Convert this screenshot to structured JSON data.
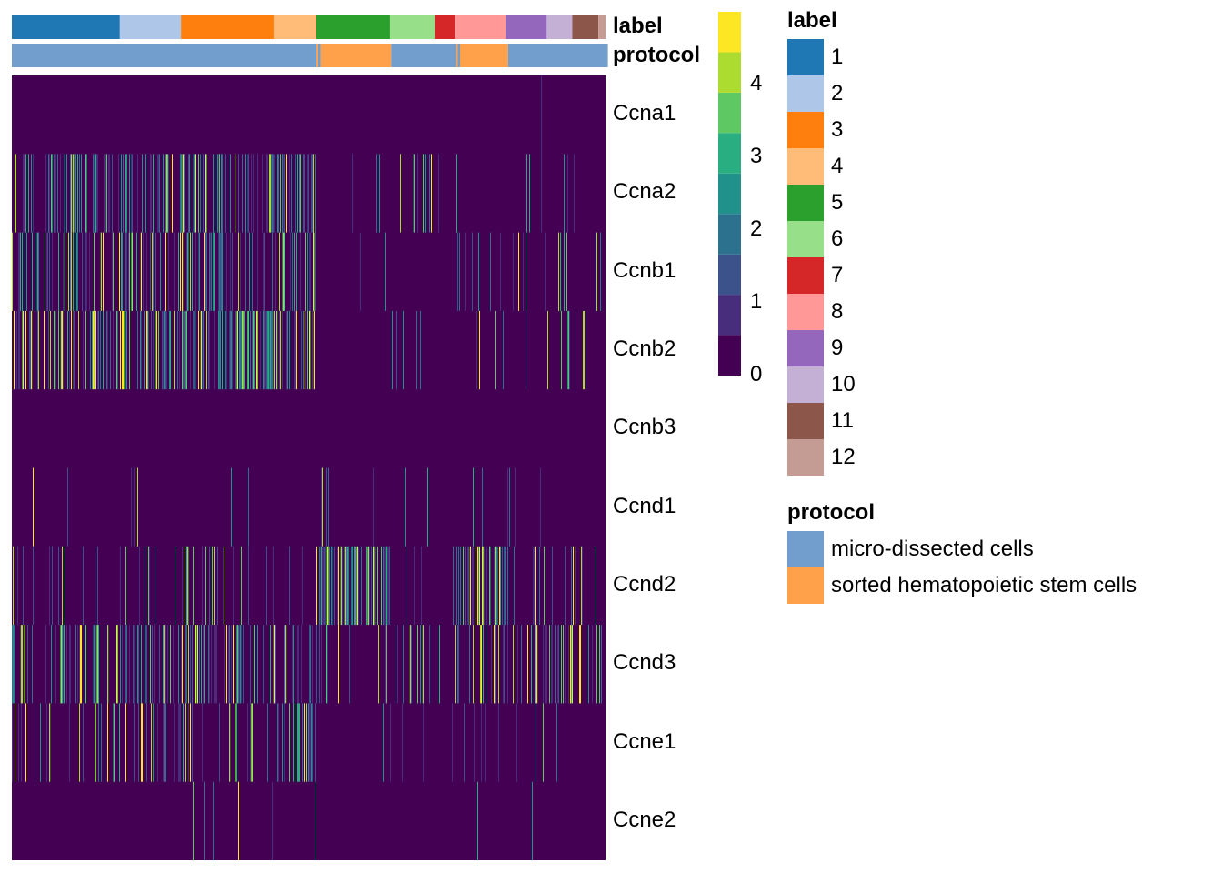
{
  "chart_data": {
    "type": "heatmap",
    "genes": [
      "Ccna1",
      "Ccna2",
      "Ccnb1",
      "Ccnb2",
      "Ccnb3",
      "Ccnd1",
      "Ccnd2",
      "Ccnd3",
      "Ccne1",
      "Ccne2"
    ],
    "annotations": {
      "label": {
        "title": "label",
        "levels": [
          "1",
          "2",
          "3",
          "4",
          "5",
          "6",
          "7",
          "8",
          "9",
          "10",
          "11",
          "12"
        ],
        "colors": [
          "#1f77b4",
          "#aec7e8",
          "#ff7f0e",
          "#ffbb78",
          "#2ca02c",
          "#98df8a",
          "#d62728",
          "#ff9896",
          "#9467bd",
          "#c5b0d5",
          "#8c564b",
          "#c49c94"
        ],
        "column_fractions": [
          0.182,
          0.103,
          0.156,
          0.072,
          0.124,
          0.075,
          0.034,
          0.086,
          0.069,
          0.043,
          0.044,
          0.012
        ]
      },
      "protocol": {
        "title": "protocol",
        "levels": [
          "micro-dissected cells",
          "sorted hematopoietic stem cells"
        ],
        "colors": [
          "#729ece",
          "#ffa04a"
        ],
        "segments": [
          {
            "level": 0,
            "fraction": 0.513
          },
          {
            "level": 1,
            "fraction": 0.003
          },
          {
            "level": 0,
            "fraction": 0.004
          },
          {
            "level": 1,
            "fraction": 0.119
          },
          {
            "level": 0,
            "fraction": 0.109
          },
          {
            "level": 1,
            "fraction": 0.003
          },
          {
            "level": 0,
            "fraction": 0.004
          },
          {
            "level": 1,
            "fraction": 0.081
          },
          {
            "level": 0,
            "fraction": 0.168
          }
        ]
      }
    },
    "expression_density_by_label": {
      "Ccna1": [
        0.002,
        0.002,
        0.002,
        0.002,
        0.0,
        0.0,
        0.0,
        0.0,
        0.01,
        0.0,
        0.0,
        0.0
      ],
      "Ccna2": [
        0.35,
        0.3,
        0.45,
        0.5,
        0.01,
        0.05,
        0.02,
        0.06,
        0.05,
        0.08,
        0.04,
        0.05
      ],
      "Ccnb1": [
        0.3,
        0.3,
        0.4,
        0.35,
        0.02,
        0.03,
        0.02,
        0.1,
        0.08,
        0.1,
        0.1,
        0.1
      ],
      "Ccnb2": [
        0.45,
        0.5,
        0.6,
        0.7,
        0.01,
        0.04,
        0.03,
        0.06,
        0.05,
        0.05,
        0.1,
        0.1
      ],
      "Ccnb3": [
        0,
        0,
        0,
        0,
        0,
        0,
        0,
        0,
        0,
        0,
        0,
        0
      ],
      "Ccnd1": [
        0.02,
        0.01,
        0.01,
        0.01,
        0.05,
        0.01,
        0.01,
        0.03,
        0.05,
        0.01,
        0.02,
        0.0
      ],
      "Ccnd2": [
        0.1,
        0.12,
        0.1,
        0.05,
        0.6,
        0.03,
        0.05,
        0.55,
        0.1,
        0.08,
        0.1,
        0.1
      ],
      "Ccnd3": [
        0.3,
        0.35,
        0.35,
        0.4,
        0.15,
        0.35,
        0.15,
        0.25,
        0.2,
        0.25,
        0.2,
        0.2
      ],
      "Ccne1": [
        0.15,
        0.2,
        0.25,
        0.4,
        0.02,
        0.04,
        0.02,
        0.05,
        0.03,
        0.05,
        0.02,
        0.05
      ],
      "Ccne2": [
        0.01,
        0.02,
        0.03,
        0.05,
        0.0,
        0.01,
        0.0,
        0.02,
        0.01,
        0.0,
        0.0,
        0.0
      ]
    },
    "colorbar": {
      "ticks": [
        0,
        1,
        2,
        3,
        4
      ],
      "range": [
        0,
        5
      ],
      "colors": [
        "#440154",
        "#472d7b",
        "#3b528b",
        "#2c728e",
        "#21918c",
        "#28ae80",
        "#5ec962",
        "#addc30",
        "#fde725"
      ]
    }
  },
  "legend": {
    "label_title": "label",
    "protocol_title": "protocol"
  },
  "annotation_row_names": {
    "label": "label",
    "protocol": "protocol"
  }
}
